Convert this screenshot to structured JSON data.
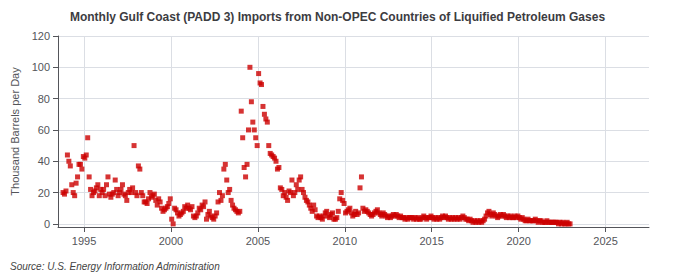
{
  "chart_data": {
    "type": "scatter",
    "title": "Monthly Gulf Coast (PADD 3) Imports from Non-OPEC Countries of Liquified Petroleum Gases",
    "ylabel": "Thousand Barrels per Day",
    "annotations": [
      "Source: U.S. Energy Information Administration"
    ],
    "color": "#cc0000",
    "marker": "square",
    "grid": true,
    "xlim": [
      1993.5,
      2027.5
    ],
    "xticks": [
      1995,
      2000,
      2005,
      2010,
      2015,
      2020,
      2025
    ],
    "ylim": [
      -2,
      120
    ],
    "yticks": [
      0,
      20,
      40,
      60,
      80,
      100,
      120
    ],
    "x": [
      1993.7916666666667,
      1993.875,
      1993.9583333333333,
      1994.0416666666667,
      1994.125,
      1994.2083333333333,
      1994.2916666666667,
      1994.375,
      1994.4583333333333,
      1994.5416666666667,
      1994.625,
      1994.7083333333333,
      1994.7916666666667,
      1994.875,
      1994.9583333333333,
      1995.0416666666667,
      1995.125,
      1995.2083333333333,
      1995.2916666666667,
      1995.375,
      1995.4583333333333,
      1995.5416666666667,
      1995.625,
      1995.7083333333333,
      1995.7916666666667,
      1995.875,
      1995.9583333333333,
      1996.0416666666667,
      1996.125,
      1996.2083333333333,
      1996.2916666666667,
      1996.375,
      1996.4583333333333,
      1996.5416666666667,
      1996.625,
      1996.7083333333333,
      1996.7916666666667,
      1996.875,
      1996.9583333333333,
      1997.0416666666667,
      1997.125,
      1997.2083333333333,
      1997.2916666666667,
      1997.375,
      1997.4583333333333,
      1997.5416666666667,
      1997.625,
      1997.7083333333333,
      1997.7916666666667,
      1997.875,
      1997.9583333333333,
      1998.0416666666667,
      1998.125,
      1998.2083333333333,
      1998.2916666666667,
      1998.375,
      1998.4583333333333,
      1998.5416666666667,
      1998.625,
      1998.7083333333333,
      1998.7916666666667,
      1998.875,
      1998.9583333333333,
      1999.0416666666667,
      1999.125,
      1999.2083333333333,
      1999.2916666666667,
      1999.375,
      1999.4583333333333,
      1999.5416666666667,
      1999.625,
      1999.7083333333333,
      1999.7916666666667,
      1999.875,
      1999.9583333333333,
      2000.0416666666667,
      2000.125,
      2000.2083333333333,
      2000.2916666666667,
      2000.375,
      2000.4583333333333,
      2000.5416666666667,
      2000.625,
      2000.7083333333333,
      2000.7916666666667,
      2000.875,
      2000.9583333333333,
      2001.0416666666667,
      2001.125,
      2001.2083333333333,
      2001.2916666666667,
      2001.375,
      2001.4583333333333,
      2001.5416666666667,
      2001.625,
      2001.7083333333333,
      2001.7916666666667,
      2001.875,
      2001.9583333333333,
      2002.0416666666667,
      2002.125,
      2002.2083333333333,
      2002.2916666666667,
      2002.375,
      2002.4583333333333,
      2002.5416666666667,
      2002.625,
      2002.7083333333333,
      2002.7916666666667,
      2002.875,
      2002.9583333333333,
      2003.0416666666667,
      2003.125,
      2003.2083333333333,
      2003.2916666666667,
      2003.375,
      2003.4583333333333,
      2003.5416666666667,
      2003.625,
      2003.7083333333333,
      2003.7916666666667,
      2003.875,
      2003.9583333333333,
      2004.0416666666667,
      2004.125,
      2004.2083333333333,
      2004.2916666666667,
      2004.375,
      2004.4583333333333,
      2004.5416666666667,
      2004.625,
      2004.7083333333333,
      2004.7916666666667,
      2004.875,
      2004.9583333333333,
      2005.0416666666667,
      2005.125,
      2005.2083333333333,
      2005.2916666666667,
      2005.375,
      2005.4583333333333,
      2005.5416666666667,
      2005.625,
      2005.7083333333333,
      2005.7916666666667,
      2005.875,
      2005.9583333333333,
      2006.0416666666667,
      2006.125,
      2006.2083333333333,
      2006.2916666666667,
      2006.375,
      2006.4583333333333,
      2006.5416666666667,
      2006.625,
      2006.7083333333333,
      2006.7916666666667,
      2006.875,
      2006.9583333333333,
      2007.0416666666667,
      2007.125,
      2007.2083333333333,
      2007.2916666666667,
      2007.375,
      2007.4583333333333,
      2007.5416666666667,
      2007.625,
      2007.7083333333333,
      2007.7916666666667,
      2007.875,
      2007.9583333333333,
      2008.0416666666667,
      2008.125,
      2008.2083333333333,
      2008.2916666666667,
      2008.375,
      2008.4583333333333,
      2008.5416666666667,
      2008.625,
      2008.7083333333333,
      2008.7916666666667,
      2008.875,
      2008.9583333333333,
      2009.0416666666667,
      2009.125,
      2009.2083333333333,
      2009.2916666666667,
      2009.375,
      2009.4583333333333,
      2009.5416666666667,
      2009.625,
      2009.7083333333333,
      2009.7916666666667,
      2009.875,
      2009.9583333333333,
      2010.0416666666667,
      2010.125,
      2010.2083333333333,
      2010.2916666666667,
      2010.375,
      2010.4583333333333,
      2010.5416666666667,
      2010.625,
      2010.7083333333333,
      2010.7916666666667,
      2010.875,
      2010.9583333333333,
      2011.0416666666667,
      2011.125,
      2011.2083333333333,
      2011.2916666666667,
      2011.375,
      2011.4583333333333,
      2011.5416666666667,
      2011.625,
      2011.7083333333333,
      2011.7916666666667,
      2011.875,
      2011.9583333333333,
      2012.0416666666667,
      2012.125,
      2012.2083333333333,
      2012.2916666666667,
      2012.375,
      2012.4583333333333,
      2012.5416666666667,
      2012.625,
      2012.7083333333333,
      2012.7916666666667,
      2012.875,
      2012.9583333333333,
      2013.0416666666667,
      2013.125,
      2013.2083333333333,
      2013.2916666666667,
      2013.375,
      2013.4583333333333,
      2013.5416666666667,
      2013.625,
      2013.7083333333333,
      2013.7916666666667,
      2013.875,
      2013.9583333333333,
      2014.0416666666667,
      2014.125,
      2014.2083333333333,
      2014.2916666666667,
      2014.375,
      2014.4583333333333,
      2014.5416666666667,
      2014.625,
      2014.7083333333333,
      2014.7916666666667,
      2014.875,
      2014.9583333333333,
      2015.0416666666667,
      2015.125,
      2015.2083333333333,
      2015.2916666666667,
      2015.375,
      2015.4583333333333,
      2015.5416666666667,
      2015.625,
      2015.7083333333333,
      2015.7916666666667,
      2015.875,
      2015.9583333333333,
      2016.0416666666667,
      2016.125,
      2016.2083333333333,
      2016.2916666666667,
      2016.375,
      2016.4583333333333,
      2016.5416666666667,
      2016.625,
      2016.7083333333333,
      2016.7916666666667,
      2016.875,
      2016.9583333333333,
      2017.0416666666667,
      2017.125,
      2017.2083333333333,
      2017.2916666666667,
      2017.375,
      2017.4583333333333,
      2017.5416666666667,
      2017.625,
      2017.7083333333333,
      2017.7916666666667,
      2017.875,
      2017.9583333333333,
      2018.0416666666667,
      2018.125,
      2018.2083333333333,
      2018.2916666666667,
      2018.375,
      2018.4583333333333,
      2018.5416666666667,
      2018.625,
      2018.7083333333333,
      2018.7916666666667,
      2018.875,
      2018.9583333333333,
      2019.0416666666667,
      2019.125,
      2019.2083333333333,
      2019.2916666666667,
      2019.375,
      2019.4583333333333,
      2019.5416666666667,
      2019.625,
      2019.7083333333333,
      2019.7916666666667,
      2019.875,
      2019.9583333333333,
      2020.0416666666667,
      2020.125,
      2020.2083333333333,
      2020.2916666666667,
      2020.375,
      2020.4583333333333,
      2020.5416666666667,
      2020.625,
      2020.7083333333333,
      2020.7916666666667,
      2020.875,
      2020.9583333333333,
      2021.0416666666667,
      2021.125,
      2021.2083333333333,
      2021.2916666666667,
      2021.375,
      2021.4583333333333,
      2021.5416666666667,
      2021.625,
      2021.7083333333333,
      2021.7916666666667,
      2021.875,
      2021.9583333333333,
      2022.0416666666667,
      2022.125,
      2022.2083333333333,
      2022.2916666666667,
      2022.375,
      2022.4583333333333,
      2022.5416666666667,
      2022.625,
      2022.7083333333333,
      2022.7916666666667,
      2022.875,
      2022.9583333333333
    ],
    "values": [
      20,
      19,
      21,
      44,
      40,
      37,
      25,
      20,
      18,
      26,
      30,
      38,
      38,
      35,
      43,
      42,
      44,
      55,
      30,
      22,
      18,
      20,
      21,
      23,
      25,
      18,
      22,
      20,
      22,
      18,
      25,
      30,
      19,
      17,
      19,
      20,
      28,
      22,
      18,
      20,
      22,
      25,
      19,
      18,
      15,
      20,
      22,
      20,
      23,
      50,
      20,
      18,
      37,
      35,
      20,
      18,
      14,
      14,
      13,
      16,
      20,
      17,
      18,
      19,
      15,
      12,
      16,
      14,
      10,
      8,
      9,
      10,
      11,
      13,
      16,
      3,
      0,
      10,
      9,
      7,
      5,
      6,
      7,
      8,
      11,
      10,
      12,
      10,
      9,
      11,
      5,
      4,
      5,
      7,
      10,
      9,
      12,
      11,
      14,
      3,
      6,
      8,
      5,
      4,
      3,
      5,
      7,
      14,
      20,
      15,
      18,
      35,
      38,
      28,
      20,
      22,
      15,
      12,
      10,
      9,
      8,
      7,
      8,
      72,
      55,
      36,
      30,
      38,
      60,
      100,
      78,
      65,
      60,
      55,
      50,
      96,
      90,
      89,
      75,
      70,
      67,
      65,
      50,
      45,
      44,
      43,
      42,
      40,
      35,
      36,
      23,
      22,
      18,
      20,
      17,
      15,
      21,
      20,
      28,
      18,
      20,
      25,
      22,
      28,
      30,
      22,
      20,
      17,
      15,
      14,
      12,
      10,
      8,
      12,
      9,
      5,
      4,
      5,
      4,
      3,
      5,
      7,
      8,
      5,
      4,
      6,
      7,
      3,
      3,
      4,
      8,
      16,
      20,
      15,
      13,
      7,
      8,
      9,
      10,
      7,
      5,
      6,
      8,
      6,
      7,
      23,
      30,
      10,
      8,
      9,
      8,
      7,
      6,
      5,
      6,
      7,
      8,
      9,
      7,
      6,
      5,
      7,
      6,
      5,
      4,
      5,
      4,
      5,
      6,
      5,
      6,
      5,
      4,
      5,
      4,
      4,
      3,
      4,
      3,
      4,
      4,
      4,
      3,
      4,
      3,
      4,
      3,
      3,
      4,
      5,
      4,
      3,
      4,
      4,
      5,
      4,
      3,
      4,
      3,
      4,
      3,
      4,
      5,
      4,
      5,
      4,
      3,
      4,
      3,
      4,
      3,
      4,
      3,
      4,
      3,
      4,
      5,
      4,
      3,
      3,
      2,
      3,
      2,
      1,
      2,
      1,
      2,
      1,
      2,
      1,
      2,
      3,
      5,
      7,
      8,
      6,
      5,
      7,
      6,
      5,
      4,
      5,
      6,
      5,
      6,
      5,
      4,
      5,
      4,
      5,
      4,
      4,
      5,
      4,
      5,
      4,
      3,
      4,
      3,
      2,
      2,
      3,
      2,
      2,
      2,
      2,
      3,
      2,
      1,
      2,
      2,
      1,
      1,
      1,
      2,
      1,
      1,
      1,
      1,
      1,
      1,
      1,
      0,
      1,
      0,
      1,
      0,
      0,
      1,
      0,
      0
    ]
  }
}
